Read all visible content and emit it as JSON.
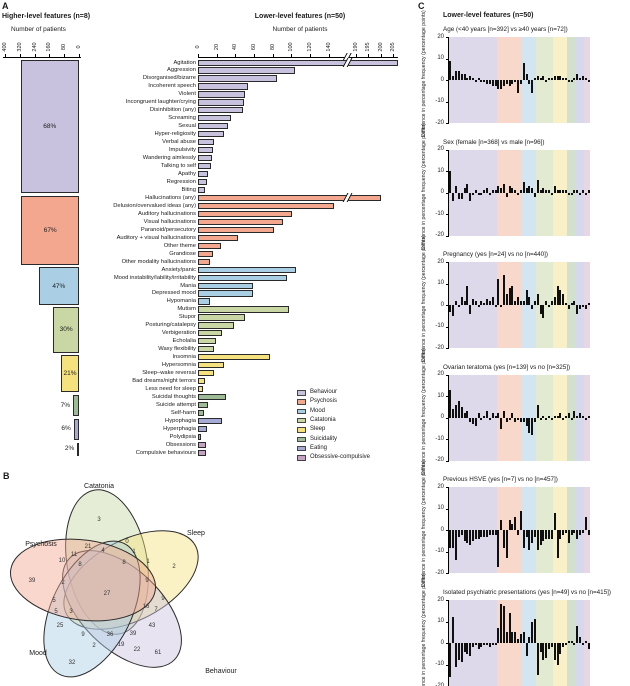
{
  "panels": {
    "a": "A",
    "b": "B",
    "c": "C"
  },
  "colors": {
    "groups": {
      "Behaviour": "#c9c2de",
      "Psychosis": "#f2a78e",
      "Mood": "#aacfe4",
      "Catatonia": "#c8d7a3",
      "Sleep": "#f5e27f",
      "Suicidality": "#9dbb97",
      "Eating": "#a5abd6",
      "Obsessive-compulsive": "#c7a3c3"
    },
    "bands": {
      "Behaviour": "#ddd9ea",
      "Psychosis": "#f8d8ca",
      "Mood": "#d3e5f1",
      "Catatonia": "#e2ead1",
      "Sleep": "#f9f0c8",
      "Suicidality": "#d2e0ce",
      "Eating": "#d6d9ec",
      "Obsessive-compulsive": "#e7d7e5"
    },
    "bar_black": "#101010"
  },
  "panelA": {
    "legend": [
      "Behaviour",
      "Psychosis",
      "Mood",
      "Catatonia",
      "Sleep",
      "Suicidality",
      "Eating",
      "Obsessive-compulsive"
    ]
  },
  "panelC": {
    "title": "Lower-level features (n=50)",
    "y_label": "Difference in percentage frequency (percentage points)",
    "y_ticks": [
      20,
      10,
      0,
      -10,
      -20
    ],
    "ylim": [
      -20,
      20
    ]
  },
  "chart_data": [
    {
      "type": "bar",
      "title": "Higher-level features (n=8)",
      "subtitle": "Number of patients",
      "xlabel": "Number of patients",
      "axis_ticks": [
        400,
        320,
        240,
        160,
        80,
        0
      ],
      "axis_reversed": true,
      "groups": [
        {
          "name": "Behaviour",
          "pct": "68%",
          "n": 316,
          "rows": 17
        },
        {
          "name": "Psychosis",
          "pct": "67%",
          "n": 311,
          "rows": 9
        },
        {
          "name": "Mood",
          "pct": "47%",
          "n": 218,
          "rows": 5
        },
        {
          "name": "Catatonia",
          "pct": "30%",
          "n": 139,
          "rows": 6
        },
        {
          "name": "Sleep",
          "pct": "21%",
          "n": 97,
          "rows": 5
        },
        {
          "name": "Suicidality",
          "pct": "7%",
          "n": 32,
          "rows": 3
        },
        {
          "name": "Eating",
          "pct": "6%",
          "n": 28,
          "rows": 3
        },
        {
          "name": "Obsessive-compulsive",
          "pct": "2%",
          "n": 9,
          "rows": 2
        }
      ]
    },
    {
      "type": "bar",
      "title": "Lower-level features (n=50)",
      "subtitle": "Number of patients",
      "xlabel": "Number of patients",
      "axis_ticks_main": [
        0,
        20,
        40,
        60,
        80,
        100,
        120,
        140
      ],
      "axis_ticks_after_break": [
        190,
        195,
        200,
        205
      ],
      "axis_break": true,
      "features": [
        {
          "label": "Agitation",
          "value": 207,
          "group": "Behaviour"
        },
        {
          "label": "Aggression",
          "value": 104,
          "group": "Behaviour"
        },
        {
          "label": "Disorganised/bizarre",
          "value": 85,
          "group": "Behaviour"
        },
        {
          "label": "Incoherent speech",
          "value": 53,
          "group": "Behaviour"
        },
        {
          "label": "Violent",
          "value": 50,
          "group": "Behaviour"
        },
        {
          "label": "Incongruent laughter/crying",
          "value": 49,
          "group": "Behaviour"
        },
        {
          "label": "Disinhibition (any)",
          "value": 48,
          "group": "Behaviour"
        },
        {
          "label": "Screaming",
          "value": 35,
          "group": "Behaviour"
        },
        {
          "label": "Sexual",
          "value": 32,
          "group": "Behaviour"
        },
        {
          "label": "Hyper-religiosity",
          "value": 28,
          "group": "Behaviour"
        },
        {
          "label": "Verbal abuse",
          "value": 17,
          "group": "Behaviour"
        },
        {
          "label": "Impulsivity",
          "value": 16,
          "group": "Behaviour"
        },
        {
          "label": "Wandering aimlessly",
          "value": 15,
          "group": "Behaviour"
        },
        {
          "label": "Talking to self",
          "value": 14,
          "group": "Behaviour"
        },
        {
          "label": "Apathy",
          "value": 11,
          "group": "Behaviour"
        },
        {
          "label": "Regression",
          "value": 10,
          "group": "Behaviour"
        },
        {
          "label": "Biting",
          "value": 8,
          "group": "Behaviour"
        },
        {
          "label": "Hallucinations (any)",
          "value": 200,
          "group": "Psychosis"
        },
        {
          "label": "Delusion/overvalued ideas (any)",
          "value": 146,
          "group": "Psychosis"
        },
        {
          "label": "Auditory hallucinations",
          "value": 101,
          "group": "Psychosis"
        },
        {
          "label": "Visual hallucinations",
          "value": 91,
          "group": "Psychosis"
        },
        {
          "label": "Paranoid/persecutory",
          "value": 81,
          "group": "Psychosis"
        },
        {
          "label": "Auditory + visual hallucinations",
          "value": 43,
          "group": "Psychosis"
        },
        {
          "label": "Other theme",
          "value": 25,
          "group": "Psychosis"
        },
        {
          "label": "Grandiose",
          "value": 16,
          "group": "Psychosis"
        },
        {
          "label": "Other modality hallucinations",
          "value": 13,
          "group": "Psychosis"
        },
        {
          "label": "Anxiety/panic",
          "value": 105,
          "group": "Mood"
        },
        {
          "label": "Mood instability/lability/irritability",
          "value": 95,
          "group": "Mood"
        },
        {
          "label": "Mania",
          "value": 59,
          "group": "Mood"
        },
        {
          "label": "Depressed mood",
          "value": 59,
          "group": "Mood"
        },
        {
          "label": "Hypomania",
          "value": 13,
          "group": "Mood"
        },
        {
          "label": "Mutism",
          "value": 97,
          "group": "Catatonia"
        },
        {
          "label": "Stupor",
          "value": 50,
          "group": "Catatonia"
        },
        {
          "label": "Posturing/catalepsy",
          "value": 39,
          "group": "Catatonia"
        },
        {
          "label": "Verbigeration",
          "value": 26,
          "group": "Catatonia"
        },
        {
          "label": "Echolalia",
          "value": 19,
          "group": "Catatonia"
        },
        {
          "label": "Waxy flexibility",
          "value": 17,
          "group": "Catatonia"
        },
        {
          "label": "Insomnia",
          "value": 77,
          "group": "Sleep"
        },
        {
          "label": "Hypersomnia",
          "value": 28,
          "group": "Sleep"
        },
        {
          "label": "Sleep–wake reversal",
          "value": 17,
          "group": "Sleep"
        },
        {
          "label": "Bad dreams/night terrors",
          "value": 8,
          "group": "Sleep"
        },
        {
          "label": "Less need for sleep",
          "value": 5,
          "group": "Sleep"
        },
        {
          "label": "Suicidal thoughts",
          "value": 30,
          "group": "Suicidality"
        },
        {
          "label": "Suicide attempt",
          "value": 11,
          "group": "Suicidality"
        },
        {
          "label": "Self-harm",
          "value": 6,
          "group": "Suicidality"
        },
        {
          "label": "Hypophagia",
          "value": 26,
          "group": "Eating"
        },
        {
          "label": "Hyperphagia",
          "value": 10,
          "group": "Eating"
        },
        {
          "label": "Polydipsia",
          "value": 3,
          "group": "Eating"
        },
        {
          "label": "Obsessions",
          "value": 9,
          "group": "Obsessive-compulsive"
        },
        {
          "label": "Compulsive behaviours",
          "value": 9,
          "group": "Obsessive-compulsive"
        }
      ]
    },
    {
      "type": "venn",
      "sets": [
        "Catatonia",
        "Sleep",
        "Behaviour",
        "Mood",
        "Psychosis"
      ],
      "set_labels": [
        {
          "name": "Catatonia",
          "x": 99,
          "y": 16
        },
        {
          "name": "Sleep",
          "x": 196,
          "y": 63
        },
        {
          "name": "Psychosis",
          "x": 41,
          "y": 74
        },
        {
          "name": "Mood",
          "x": 38,
          "y": 183
        },
        {
          "name": "Behaviour",
          "x": 221,
          "y": 201
        }
      ],
      "regions": [
        {
          "value": 3,
          "x": 99,
          "y": 49
        },
        {
          "value": 21,
          "x": 88,
          "y": 76
        },
        {
          "value": 0,
          "x": 127,
          "y": 71
        },
        {
          "value": 4,
          "x": 103,
          "y": 80
        },
        {
          "value": 1,
          "x": 134,
          "y": 81
        },
        {
          "value": 11,
          "x": 74,
          "y": 84
        },
        {
          "value": 10,
          "x": 62,
          "y": 90
        },
        {
          "value": 8,
          "x": 80,
          "y": 94
        },
        {
          "value": 8,
          "x": 124,
          "y": 92
        },
        {
          "value": 1,
          "x": 148,
          "y": 91
        },
        {
          "value": 39,
          "x": 32,
          "y": 110
        },
        {
          "value": 2,
          "x": 174,
          "y": 96
        },
        {
          "value": 2,
          "x": 63,
          "y": 112
        },
        {
          "value": 9,
          "x": 147,
          "y": 110
        },
        {
          "value": 27,
          "x": 107,
          "y": 123
        },
        {
          "value": 5,
          "x": 54,
          "y": 130
        },
        {
          "value": 9,
          "x": 163,
          "y": 128
        },
        {
          "value": 16,
          "x": 146,
          "y": 136
        },
        {
          "value": 7,
          "x": 156,
          "y": 139
        },
        {
          "value": 5,
          "x": 56,
          "y": 141
        },
        {
          "value": 3,
          "x": 71,
          "y": 141
        },
        {
          "value": 25,
          "x": 60,
          "y": 155
        },
        {
          "value": 43,
          "x": 152,
          "y": 155
        },
        {
          "value": 9,
          "x": 83,
          "y": 164
        },
        {
          "value": 36,
          "x": 110,
          "y": 164
        },
        {
          "value": 39,
          "x": 133,
          "y": 163
        },
        {
          "value": 2,
          "x": 94,
          "y": 175
        },
        {
          "value": 19,
          "x": 121,
          "y": 174
        },
        {
          "value": 22,
          "x": 137,
          "y": 179
        },
        {
          "value": 32,
          "x": 72,
          "y": 192
        },
        {
          "value": 61,
          "x": 158,
          "y": 182
        }
      ]
    },
    {
      "type": "bar",
      "title": "Age (<40 years [n=392] vs ≥40 years [n=72])",
      "ylabel": "Difference in percentage frequency (percentage points)",
      "ylim": [
        -20,
        20
      ],
      "values": [
        9,
        2,
        4,
        4,
        3,
        3,
        1,
        2,
        1,
        -1,
        1,
        -1,
        -1,
        -2,
        -2,
        -3,
        -3,
        -4,
        -4,
        -3,
        -2,
        -3,
        -2,
        -1,
        -6,
        -2,
        8,
        3,
        -2,
        -6,
        1,
        2,
        1,
        2,
        -1,
        1,
        1,
        2,
        2,
        2,
        1,
        1,
        -1,
        -1,
        1,
        3,
        1,
        2,
        1,
        -1
      ]
    },
    {
      "type": "bar",
      "title": "Sex (female [n=368] vs male [n=96])",
      "ylabel": "Difference in percentage frequency (percentage points)",
      "ylim": [
        -20,
        20
      ],
      "values": [
        10,
        -4,
        3,
        -3,
        -3,
        2,
        4,
        -4,
        -1,
        1,
        -1,
        -1,
        1,
        2,
        -1,
        1,
        1,
        3,
        2,
        4,
        -2,
        3,
        2,
        1,
        -1,
        1,
        5,
        2,
        3,
        2,
        -2,
        6,
        1,
        2,
        1,
        1,
        -1,
        3,
        1,
        1,
        1,
        1,
        -1,
        -1,
        1,
        1,
        -1,
        1,
        -1,
        1
      ]
    },
    {
      "type": "bar",
      "title": "Pregnancy (yes [n=24] vs no [n=440])",
      "ylabel": "Difference in percentage frequency (percentage points)",
      "ylim": [
        -20,
        20
      ],
      "values": [
        -3,
        -5,
        2,
        -1,
        4,
        2,
        9,
        -4,
        3,
        2,
        -1,
        2,
        1,
        3,
        2,
        4,
        -1,
        12,
        -1,
        14,
        5,
        8,
        9,
        2,
        4,
        2,
        2,
        7,
        4,
        -2,
        2,
        5,
        -4,
        -6,
        2,
        -1,
        2,
        4,
        9,
        7,
        5,
        1,
        -2,
        1,
        2,
        -4,
        -2,
        -1,
        -2,
        1
      ]
    },
    {
      "type": "bar",
      "title": "Ovarian teratoma (yes [n=139] vs no [n=325])",
      "ylabel": "Difference in percentage frequency (percentage points)",
      "ylim": [
        -20,
        20
      ],
      "values": [
        13,
        4,
        6,
        8,
        5,
        2,
        3,
        -2,
        -3,
        -4,
        2,
        -1,
        1,
        3,
        -1,
        2,
        1,
        2,
        -5,
        3,
        -2,
        -1,
        2,
        -2,
        -1,
        -2,
        -2,
        -4,
        -7,
        -8,
        -2,
        6,
        -1,
        1,
        -1,
        1,
        -1,
        1,
        1,
        2,
        -1,
        1,
        2,
        -1,
        3,
        1,
        2,
        1,
        -1,
        1
      ]
    },
    {
      "type": "bar",
      "title": "Previous HSVE (yes [n=7] vs no [n=457])",
      "ylabel": "Difference in percentage frequency (percentage points)",
      "ylim": [
        -20,
        20
      ],
      "values": [
        -8,
        -8,
        -14,
        -3,
        -2,
        -5,
        -6,
        -7,
        -5,
        -4,
        -4,
        -3,
        -3,
        -3,
        -2,
        -2,
        -2,
        -17,
        5,
        -8,
        -13,
        5,
        3,
        6,
        -2,
        9,
        -8,
        -3,
        -9,
        -6,
        -3,
        -9,
        -7,
        -5,
        -4,
        -4,
        -4,
        8,
        -13,
        -4,
        -2,
        -1,
        -6,
        -2,
        -1,
        -4,
        -2,
        -1,
        6,
        -2
      ]
    },
    {
      "type": "bar",
      "title": "Isolated psychiatric presentations (yes [n=49] vs no [n=415])",
      "ylabel": "Difference in percentage frequency (percentage points)",
      "ylim": [
        -20,
        20
      ],
      "values": [
        -16,
        12,
        -11,
        -8,
        -9,
        -4,
        -5,
        -6,
        -2,
        -1,
        -3,
        -2,
        -1,
        -1,
        -2,
        -1,
        -1,
        7,
        18,
        17,
        5,
        14,
        5,
        5,
        2,
        4,
        5,
        -6,
        3,
        10,
        11,
        -15,
        -4,
        -8,
        -7,
        -3,
        -2,
        -8,
        -10,
        -5,
        -2,
        -1,
        1,
        1,
        -1,
        8,
        3,
        -1,
        1,
        -3
      ]
    }
  ]
}
